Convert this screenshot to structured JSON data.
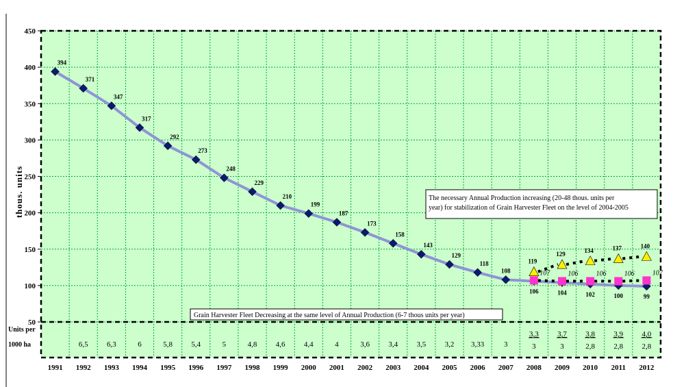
{
  "chart_data": {
    "type": "line",
    "ylabel": "thous. units",
    "ylim": [
      50,
      450
    ],
    "yticks": [
      50,
      100,
      150,
      200,
      250,
      300,
      350,
      400,
      450
    ],
    "grid": true,
    "years": [
      "1991",
      "1992",
      "1993",
      "1994",
      "1995",
      "1996",
      "1997",
      "1998",
      "1999",
      "2000",
      "2001",
      "2002",
      "2003",
      "2004",
      "2005",
      "2006",
      "2007",
      "2008",
      "2009",
      "2010",
      "2011",
      "2012"
    ],
    "series": [
      {
        "values": [
          394,
          371,
          347,
          317,
          292,
          273,
          248,
          229,
          210,
          199,
          187,
          173,
          158,
          143,
          129,
          118,
          108,
          106,
          104,
          102,
          100,
          99
        ],
        "labels": [
          "394",
          "371",
          "347",
          "317",
          "292",
          "273",
          "248",
          "229",
          "210",
          "199",
          "187",
          "173",
          "158",
          "143",
          "129",
          "118",
          "108",
          "106",
          "104",
          "102",
          "100",
          "99"
        ],
        "marker": "diamond",
        "color": "#0a1a6e",
        "line_color": "#8f94d6"
      },
      {
        "years": [
          "2008",
          "2009",
          "2010",
          "2011",
          "2012"
        ],
        "values": [
          119,
          129,
          134,
          137,
          140
        ],
        "labels": [
          "119",
          "129",
          "134",
          "137",
          "140"
        ],
        "marker": "triangle",
        "color": "#ffee00"
      },
      {
        "years": [
          "2008",
          "2009",
          "2010",
          "2011",
          "2012"
        ],
        "values": [
          107,
          106,
          106,
          106,
          107
        ],
        "labels": [
          "107",
          "106",
          "106",
          "106",
          "107"
        ],
        "marker": "square",
        "color": "#ff33cc"
      }
    ],
    "units_row": {
      "label_line1": "Units per",
      "label_line2": "1000 ha",
      "values": [
        "",
        "6,5",
        "6,3",
        "6",
        "5,8",
        "5,4",
        "5",
        "4,8",
        "4,6",
        "4,4",
        "4",
        "3,6",
        "3,4",
        "3,5",
        "3,2",
        "3,33",
        "3"
      ],
      "top_values": [
        "3,3",
        "3,7",
        "3,8",
        "3,9",
        "4,0"
      ],
      "bottom_values": [
        "3",
        "3",
        "2,8",
        "2,8",
        "2,8"
      ]
    },
    "annotations": {
      "top_box_line1": "The necessary Annual Production increasing  (20-48 thous. units per",
      "top_box_line2": "year) for stabilization of Grain Harvester Fleet on the level of 2004-2005",
      "bottom_box": "Grain Harvester Fleet Decreasing at the same level of Annual Production (6-7 thous units per year)"
    },
    "colors": {
      "plot_bg": "#ccffcc",
      "grid": "#00a63a",
      "frame": "#000000"
    }
  }
}
